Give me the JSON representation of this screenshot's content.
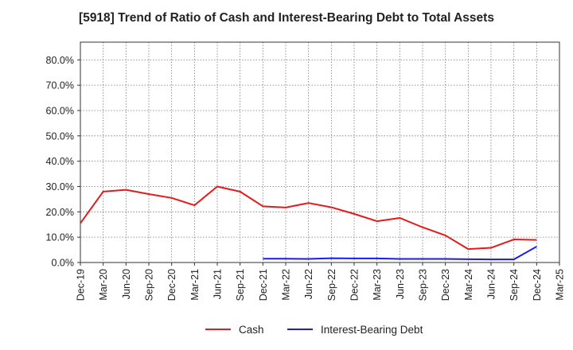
{
  "chart_data": {
    "type": "line",
    "title": "[5918]  Trend of Ratio of Cash and Interest-Bearing Debt to Total Assets",
    "xlabel": "",
    "ylabel": "",
    "x_ticks": [
      "Dec-19",
      "Mar-20",
      "Jun-20",
      "Sep-20",
      "Dec-20",
      "Mar-21",
      "Jun-21",
      "Sep-21",
      "Dec-21",
      "Mar-22",
      "Jun-22",
      "Sep-22",
      "Dec-22",
      "Mar-23",
      "Jun-23",
      "Sep-23",
      "Dec-23",
      "Mar-24",
      "Jun-24",
      "Sep-24",
      "Dec-24",
      "Mar-25"
    ],
    "y_ticks": [
      "0.0%",
      "10.0%",
      "20.0%",
      "30.0%",
      "40.0%",
      "50.0%",
      "60.0%",
      "70.0%",
      "80.0%"
    ],
    "ylim": [
      0,
      87
    ],
    "grid": true,
    "legend_position": "bottom-center",
    "series": [
      {
        "name": "Cash",
        "color": "#e41a1c",
        "points": [
          [
            "Dec-19",
            15.5
          ],
          [
            "Mar-20",
            28.0
          ],
          [
            "Jun-20",
            28.7
          ],
          [
            "Sep-20",
            27.0
          ],
          [
            "Dec-20",
            25.5
          ],
          [
            "Mar-21",
            22.6
          ],
          [
            "Jun-21",
            30.0
          ],
          [
            "Sep-21",
            28.0
          ],
          [
            "Dec-21",
            22.2
          ],
          [
            "Mar-22",
            21.7
          ],
          [
            "Jun-22",
            23.5
          ],
          [
            "Sep-22",
            21.8
          ],
          [
            "Dec-22",
            19.2
          ],
          [
            "Mar-23",
            16.3
          ],
          [
            "Jun-23",
            17.6
          ],
          [
            "Sep-23",
            13.9
          ],
          [
            "Dec-23",
            10.7
          ],
          [
            "Mar-24",
            5.3
          ],
          [
            "Jun-24",
            5.8
          ],
          [
            "Sep-24",
            9.1
          ],
          [
            "Dec-24",
            8.9
          ]
        ]
      },
      {
        "name": "Interest-Bearing Debt",
        "color": "#1a1aee",
        "points": [
          [
            "Dec-21",
            1.5
          ],
          [
            "Mar-22",
            1.5
          ],
          [
            "Jun-22",
            1.4
          ],
          [
            "Sep-22",
            1.7
          ],
          [
            "Dec-22",
            1.6
          ],
          [
            "Mar-23",
            1.6
          ],
          [
            "Jun-23",
            1.4
          ],
          [
            "Sep-23",
            1.4
          ],
          [
            "Dec-23",
            1.4
          ],
          [
            "Mar-24",
            1.3
          ],
          [
            "Jun-24",
            1.2
          ],
          [
            "Sep-24",
            1.2
          ],
          [
            "Dec-24",
            6.3
          ]
        ]
      }
    ]
  }
}
